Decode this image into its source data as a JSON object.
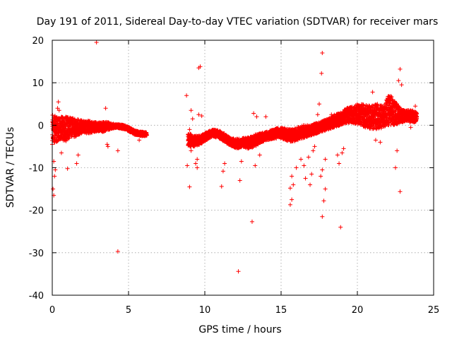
{
  "chart_data": {
    "type": "scatter",
    "title": "Day 191 of 2011, Sidereal Day-to-day VTEC variation (SDTVAR) for receiver mars",
    "xlabel": "GPS time / hours",
    "ylabel": "SDTVAR / TECUs",
    "xlim": [
      0,
      25
    ],
    "ylim": [
      -40,
      20
    ],
    "xticks": [
      0,
      5,
      10,
      15,
      20,
      25
    ],
    "yticks": [
      -40,
      -30,
      -20,
      -10,
      0,
      10,
      20
    ],
    "grid": true,
    "marker": "+",
    "color": "#ff0000",
    "series": [
      {
        "name": "SDTVAR",
        "band": [
          [
            0.0,
            -4.5,
            2.5
          ],
          [
            0.3,
            -4.0,
            2.2
          ],
          [
            0.6,
            -3.5,
            2.0
          ],
          [
            0.9,
            -3.8,
            2.0
          ],
          [
            1.2,
            -3.0,
            1.8
          ],
          [
            1.5,
            -2.8,
            1.5
          ],
          [
            1.8,
            -2.2,
            1.4
          ],
          [
            2.1,
            -1.8,
            1.0
          ],
          [
            2.4,
            -2.0,
            1.0
          ],
          [
            2.7,
            -1.6,
            0.8
          ],
          [
            3.0,
            -1.4,
            0.6
          ],
          [
            3.3,
            -1.6,
            0.8
          ],
          [
            3.6,
            -1.2,
            0.8
          ],
          [
            3.9,
            -0.8,
            0.4
          ],
          [
            4.2,
            -0.6,
            0.2
          ],
          [
            4.5,
            -0.8,
            0.2
          ],
          [
            4.8,
            -1.0,
            -0.1
          ],
          [
            5.1,
            -1.6,
            -0.6
          ],
          [
            5.4,
            -2.2,
            -1.2
          ],
          [
            5.7,
            -2.4,
            -1.5
          ],
          [
            6.0,
            -2.6,
            -1.6
          ],
          [
            6.2,
            -2.4,
            -1.7
          ],
          [
            8.9,
            -5.0,
            -1.8
          ],
          [
            9.3,
            -5.0,
            -2.5
          ],
          [
            9.7,
            -4.5,
            -2.5
          ],
          [
            10.1,
            -3.5,
            -1.6
          ],
          [
            10.5,
            -2.6,
            -1.0
          ],
          [
            10.9,
            -3.0,
            -1.2
          ],
          [
            11.3,
            -4.0,
            -2.0
          ],
          [
            11.7,
            -4.8,
            -3.0
          ],
          [
            12.1,
            -5.5,
            -3.2
          ],
          [
            12.5,
            -5.0,
            -3.0
          ],
          [
            12.9,
            -5.6,
            -2.8
          ],
          [
            13.3,
            -5.0,
            -2.2
          ],
          [
            13.7,
            -4.0,
            -1.8
          ],
          [
            14.1,
            -3.5,
            -1.5
          ],
          [
            14.5,
            -3.2,
            -1.0
          ],
          [
            14.9,
            -3.0,
            -0.5
          ],
          [
            15.3,
            -3.5,
            -0.8
          ],
          [
            15.7,
            -4.0,
            -1.0
          ],
          [
            16.1,
            -3.5,
            -0.5
          ],
          [
            16.5,
            -3.0,
            0.0
          ],
          [
            16.9,
            -2.5,
            0.0
          ],
          [
            17.3,
            -2.0,
            0.5
          ],
          [
            17.7,
            -1.5,
            1.0
          ],
          [
            18.1,
            -1.0,
            1.5
          ],
          [
            18.5,
            -0.5,
            2.5
          ],
          [
            18.9,
            0.0,
            3.0
          ],
          [
            19.3,
            0.5,
            4.0
          ],
          [
            19.7,
            0.5,
            4.5
          ],
          [
            20.1,
            0.0,
            5.0
          ],
          [
            20.5,
            -0.5,
            5.0
          ],
          [
            20.9,
            -1.0,
            4.5
          ],
          [
            21.3,
            -1.0,
            5.0
          ],
          [
            21.7,
            -0.5,
            4.5
          ],
          [
            22.1,
            0.0,
            7.5
          ],
          [
            22.5,
            0.0,
            5.5
          ],
          [
            22.8,
            0.5,
            4.0
          ],
          [
            23.2,
            1.0,
            3.5
          ],
          [
            23.6,
            0.5,
            3.5
          ],
          [
            23.9,
            1.0,
            3.0
          ]
        ],
        "outliers": [
          [
            0.1,
            -16.5
          ],
          [
            0.05,
            -15.0
          ],
          [
            0.15,
            -12.0
          ],
          [
            0.1,
            -8.5
          ],
          [
            0.2,
            -10.5
          ],
          [
            0.4,
            5.5
          ],
          [
            0.45,
            3.5
          ],
          [
            0.35,
            4.0
          ],
          [
            0.6,
            -6.5
          ],
          [
            1.0,
            -10.2
          ],
          [
            1.6,
            -9.0
          ],
          [
            1.7,
            -7.0
          ],
          [
            2.9,
            19.5
          ],
          [
            3.5,
            4.0
          ],
          [
            3.6,
            -4.5
          ],
          [
            3.65,
            -5.0
          ],
          [
            4.3,
            -29.7
          ],
          [
            4.3,
            -6.0
          ],
          [
            5.7,
            -3.5
          ],
          [
            8.8,
            7.0
          ],
          [
            8.85,
            -9.5
          ],
          [
            9.0,
            -14.5
          ],
          [
            9.1,
            3.5
          ],
          [
            9.2,
            1.5
          ],
          [
            9.0,
            -1.0
          ],
          [
            9.1,
            -6.0
          ],
          [
            9.5,
            -8.0
          ],
          [
            9.5,
            -10.0
          ],
          [
            9.6,
            13.5
          ],
          [
            9.7,
            13.8
          ],
          [
            9.8,
            2.2
          ],
          [
            9.6,
            2.5
          ],
          [
            9.4,
            -9.0
          ],
          [
            11.1,
            -14.4
          ],
          [
            11.2,
            -10.8
          ],
          [
            11.3,
            -9.0
          ],
          [
            12.2,
            -34.4
          ],
          [
            12.3,
            -13.0
          ],
          [
            12.4,
            -8.5
          ],
          [
            13.1,
            -22.7
          ],
          [
            13.2,
            2.8
          ],
          [
            13.3,
            -9.5
          ],
          [
            13.4,
            2.0
          ],
          [
            13.6,
            -7.0
          ],
          [
            14.0,
            2.0
          ],
          [
            15.6,
            -18.7
          ],
          [
            15.7,
            -17.5
          ],
          [
            15.6,
            -14.8
          ],
          [
            15.8,
            -14.0
          ],
          [
            15.7,
            -12.0
          ],
          [
            16.0,
            -10.0
          ],
          [
            16.3,
            -8.0
          ],
          [
            16.5,
            -9.5
          ],
          [
            16.6,
            -12.5
          ],
          [
            16.8,
            -7.5
          ],
          [
            16.9,
            -14.0
          ],
          [
            17.0,
            -11.5
          ],
          [
            17.1,
            -6.0
          ],
          [
            17.2,
            -5.0
          ],
          [
            17.7,
            17.0
          ],
          [
            17.65,
            12.2
          ],
          [
            17.7,
            -21.5
          ],
          [
            17.8,
            -17.8
          ],
          [
            17.6,
            -12.0
          ],
          [
            17.7,
            -10.5
          ],
          [
            17.9,
            -15.0
          ],
          [
            17.9,
            -8.0
          ],
          [
            17.5,
            5.0
          ],
          [
            17.4,
            2.5
          ],
          [
            18.3,
            2.5
          ],
          [
            18.9,
            -24.0
          ],
          [
            18.8,
            -9.0
          ],
          [
            18.7,
            -7.0
          ],
          [
            19.0,
            -6.5
          ],
          [
            19.1,
            -5.5
          ],
          [
            21.0,
            7.8
          ],
          [
            21.2,
            -3.5
          ],
          [
            21.5,
            -4.0
          ],
          [
            22.0,
            6.0
          ],
          [
            22.5,
            -10.0
          ],
          [
            22.6,
            -6.0
          ],
          [
            22.7,
            10.5
          ],
          [
            22.8,
            13.2
          ],
          [
            22.9,
            9.5
          ],
          [
            22.8,
            -15.6
          ],
          [
            23.2,
            1.8
          ],
          [
            23.5,
            -0.5
          ],
          [
            23.8,
            4.5
          ]
        ]
      }
    ]
  }
}
